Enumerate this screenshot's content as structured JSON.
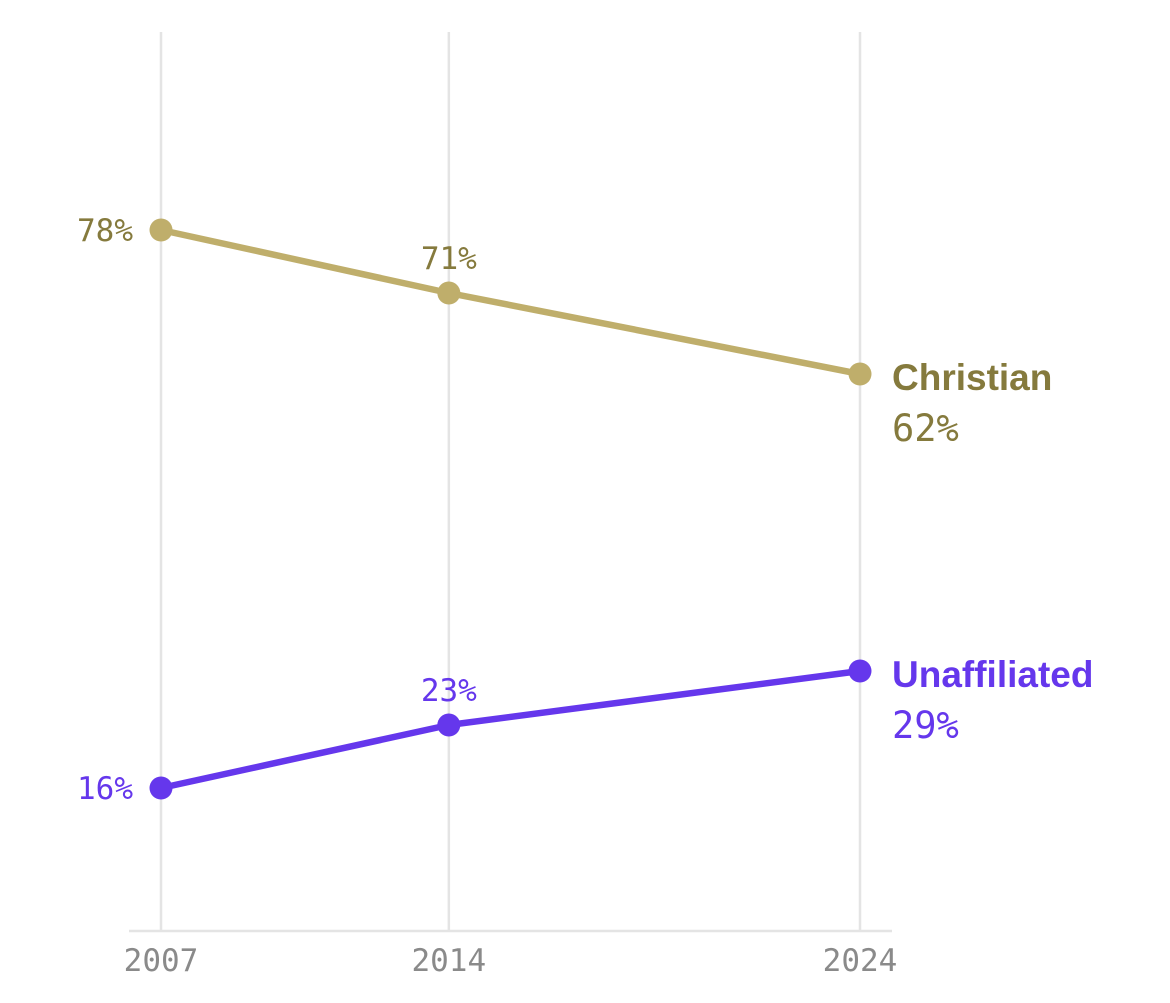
{
  "chart_data": {
    "type": "line",
    "title": "",
    "xlabel": "",
    "ylabel": "",
    "x": [
      "2007",
      "2014",
      "2024"
    ],
    "x_numeric": [
      2007,
      2014,
      2024
    ],
    "ylim": [
      0,
      100
    ],
    "grid": "vertical",
    "legend": "direct labels at line ends (right)",
    "series": [
      {
        "name": "Christian",
        "values": [
          78,
          71,
          62
        ],
        "labels": [
          "78%",
          "71%",
          "62%"
        ],
        "color": "#bfae6b",
        "text_color": "#857a3d"
      },
      {
        "name": "Unaffiliated",
        "values": [
          16,
          23,
          29
        ],
        "labels": [
          "16%",
          "23%",
          "29%"
        ],
        "color": "#6537ec",
        "text_color": "#6537ec"
      }
    ]
  }
}
